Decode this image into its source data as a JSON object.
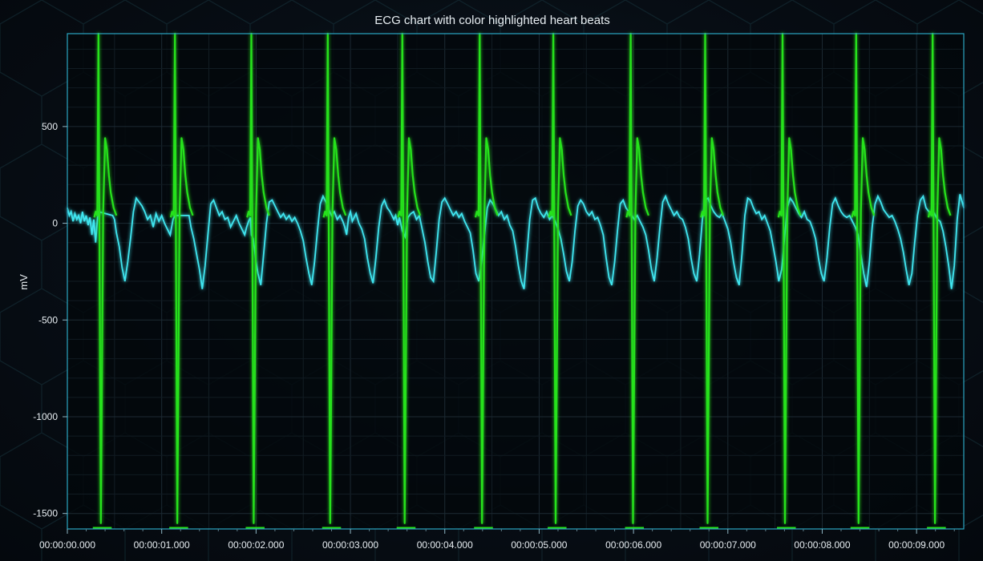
{
  "chart_data": {
    "type": "line",
    "title": "ECG chart with color highlighted heart beats",
    "xlabel": "",
    "ylabel": "mV",
    "x_unit": "seconds",
    "xlim": [
      0,
      9.5
    ],
    "ylim": [
      -1580,
      980
    ],
    "x_ticks": [
      0,
      1,
      2,
      3,
      4,
      5,
      6,
      7,
      8,
      9
    ],
    "x_tick_labels": [
      "00:00:00.000",
      "00:00:01.000",
      "00:00:02.000",
      "00:00:03.000",
      "00:00:04.000",
      "00:00:05.000",
      "00:00:06.000",
      "00:00:07.000",
      "00:00:08.000",
      "00:00:09.000"
    ],
    "y_ticks": [
      500,
      0,
      -500,
      -1000,
      -1500
    ],
    "y_tick_labels": [
      "500",
      "0",
      "-500",
      "-1000",
      "-1500"
    ],
    "grid": true,
    "legend": "none",
    "series": [
      {
        "role": "baseline",
        "color": "#3fe6f0",
        "x": [
          0.0,
          0.02,
          0.04,
          0.06,
          0.08,
          0.1,
          0.12,
          0.14,
          0.16,
          0.18,
          0.2,
          0.22,
          0.24,
          0.26,
          0.28,
          0.3,
          0.32,
          0.33,
          0.48,
          0.5,
          0.52,
          0.55,
          0.58,
          0.61,
          0.64,
          0.67,
          0.7,
          0.73,
          0.76,
          0.79,
          0.82,
          0.85,
          0.88,
          0.91,
          0.94,
          0.97,
          1.0,
          1.03,
          1.06,
          1.09,
          1.12,
          1.14,
          1.29,
          1.31,
          1.34,
          1.37,
          1.4,
          1.43,
          1.46,
          1.49,
          1.52,
          1.55,
          1.58,
          1.61,
          1.64,
          1.67,
          1.7,
          1.73,
          1.76,
          1.79,
          1.82,
          1.85,
          1.88,
          1.9,
          1.92,
          1.94,
          1.95,
          1.97,
          2.0,
          2.02,
          2.05,
          2.08,
          2.11,
          2.14,
          2.17,
          2.2,
          2.23,
          2.26,
          2.29,
          2.32,
          2.35,
          2.38,
          2.41,
          2.44,
          2.47,
          2.5,
          2.53,
          2.56,
          2.59,
          2.62,
          2.65,
          2.68,
          2.71,
          2.74,
          2.77,
          2.8,
          2.83,
          2.86,
          2.89,
          2.92,
          2.94,
          2.96,
          2.98,
          3.0,
          3.02,
          3.06,
          3.09,
          3.12,
          3.15,
          3.18,
          3.21,
          3.24,
          3.27,
          3.3,
          3.33,
          3.36,
          3.39,
          3.42,
          3.44,
          3.46,
          3.48,
          3.5,
          3.52,
          3.55,
          3.58,
          3.61,
          3.64,
          3.67,
          3.7,
          3.73,
          3.76,
          3.79,
          3.82,
          3.85,
          3.88,
          3.91,
          3.94,
          3.97,
          4.0,
          4.03,
          4.06,
          4.09,
          4.12,
          4.15,
          4.18,
          4.21,
          4.24,
          4.27,
          4.3,
          4.33,
          4.36,
          4.39,
          4.42,
          4.45,
          4.48,
          4.51,
          4.54,
          4.57,
          4.6,
          4.63,
          4.66,
          4.69,
          4.72,
          4.75,
          4.78,
          4.81,
          4.84,
          4.87,
          4.9,
          4.93,
          4.96,
          4.99,
          5.02,
          5.05,
          5.08,
          5.11,
          5.14,
          5.17,
          5.2,
          5.23,
          5.26,
          5.29,
          5.32,
          5.35,
          5.38,
          5.41,
          5.44,
          5.47,
          5.5,
          5.53,
          5.56,
          5.59,
          5.62,
          5.65,
          5.68,
          5.71,
          5.74,
          5.77,
          5.8,
          5.83,
          5.86,
          5.89,
          5.92,
          5.95,
          5.98,
          6.01,
          6.04,
          6.07,
          6.1,
          6.13,
          6.16,
          6.19,
          6.22,
          6.25,
          6.28,
          6.31,
          6.34,
          6.37,
          6.4,
          6.43,
          6.46,
          6.49,
          6.52,
          6.55,
          6.58,
          6.61,
          6.64,
          6.67,
          6.7,
          6.73,
          6.76,
          6.79,
          6.82,
          6.85,
          6.88,
          6.91,
          6.94,
          6.97,
          7.0,
          7.03,
          7.06,
          7.09,
          7.12,
          7.15,
          7.18,
          7.21,
          7.24,
          7.27,
          7.3,
          7.33,
          7.36,
          7.39,
          7.42,
          7.45,
          7.48,
          7.51,
          7.54,
          7.57,
          7.6,
          7.63,
          7.66,
          7.69,
          7.72,
          7.75,
          7.78,
          7.81,
          7.84,
          7.87,
          7.9,
          7.93,
          7.96,
          7.99,
          8.02,
          8.05,
          8.08,
          8.11,
          8.14,
          8.17,
          8.2,
          8.23,
          8.26,
          8.29,
          8.32,
          8.35,
          8.38,
          8.41,
          8.44,
          8.47,
          8.5,
          8.53,
          8.56,
          8.59,
          8.62,
          8.65,
          8.68,
          8.71,
          8.74,
          8.77,
          8.8,
          8.83,
          8.86,
          8.89,
          8.92,
          8.95,
          8.98,
          9.01,
          9.04,
          9.07,
          9.1,
          9.13,
          9.16,
          9.19,
          9.22,
          9.25,
          9.28,
          9.31,
          9.34,
          9.37,
          9.4,
          9.43,
          9.46,
          9.49,
          9.5
        ],
        "y": [
          80,
          40,
          60,
          10,
          50,
          20,
          40,
          0,
          60,
          10,
          40,
          -10,
          30,
          -60,
          20,
          -100,
          30,
          60,
          40,
          20,
          -50,
          -120,
          -230,
          -300,
          -200,
          -80,
          60,
          130,
          110,
          90,
          60,
          20,
          40,
          -20,
          50,
          10,
          40,
          0,
          -30,
          -60,
          20,
          40,
          40,
          -20,
          -80,
          -160,
          -240,
          -340,
          -220,
          -60,
          100,
          120,
          80,
          40,
          60,
          20,
          30,
          -20,
          10,
          40,
          0,
          -30,
          -60,
          -20,
          10,
          30,
          -60,
          -80,
          -200,
          -260,
          -320,
          -160,
          0,
          110,
          120,
          90,
          60,
          30,
          50,
          20,
          40,
          10,
          30,
          0,
          -40,
          -90,
          -180,
          -260,
          -320,
          -200,
          -40,
          100,
          140,
          110,
          70,
          40,
          60,
          20,
          40,
          10,
          -20,
          -60,
          30,
          60,
          10,
          50,
          0,
          -30,
          -80,
          -180,
          -260,
          -310,
          -180,
          -20,
          90,
          120,
          80,
          60,
          40,
          20,
          40,
          -10,
          30,
          -40,
          -70,
          30,
          50,
          60,
          20,
          40,
          -30,
          -100,
          -200,
          -280,
          -300,
          -150,
          20,
          110,
          130,
          100,
          70,
          40,
          60,
          30,
          50,
          10,
          -20,
          -50,
          -140,
          -260,
          -300,
          -200,
          -60,
          80,
          120,
          100,
          70,
          40,
          60,
          20,
          40,
          -10,
          -40,
          -120,
          -220,
          -300,
          -340,
          -160,
          20,
          120,
          130,
          80,
          50,
          30,
          60,
          20,
          40,
          10,
          -30,
          -80,
          -160,
          -250,
          -300,
          -200,
          -40,
          90,
          120,
          100,
          60,
          40,
          60,
          20,
          30,
          -10,
          -60,
          -180,
          -280,
          -320,
          -200,
          -40,
          100,
          120,
          80,
          60,
          40,
          20,
          40,
          10,
          -20,
          -60,
          -140,
          -240,
          -300,
          -180,
          -20,
          110,
          140,
          100,
          70,
          40,
          60,
          30,
          20,
          -20,
          -80,
          -180,
          -260,
          -300,
          -160,
          20,
          120,
          130,
          90,
          60,
          40,
          30,
          50,
          10,
          -30,
          -100,
          -200,
          -280,
          -320,
          -160,
          40,
          130,
          120,
          80,
          50,
          60,
          20,
          40,
          0,
          -40,
          -120,
          -200,
          -300,
          -240,
          -80,
          80,
          130,
          110,
          80,
          50,
          30,
          60,
          20,
          10,
          -30,
          -80,
          -180,
          -260,
          -300,
          -180,
          -20,
          100,
          130,
          90,
          60,
          40,
          30,
          40,
          10,
          -20,
          -60,
          -160,
          -260,
          -330,
          -200,
          -20,
          100,
          140,
          110,
          70,
          50,
          30,
          40,
          10,
          -30,
          -80,
          -150,
          -240,
          -320,
          -260,
          -100,
          40,
          120,
          140,
          80,
          60,
          40,
          50,
          20,
          10,
          -40,
          -120,
          -220,
          -340,
          -220,
          20,
          150,
          100,
          80
        ]
      },
      {
        "role": "highlighted-beats",
        "color": "#27e21b",
        "beats_x": [
          0.33,
          1.14,
          1.95,
          2.76,
          3.55,
          4.37,
          5.15,
          5.97,
          6.76,
          7.58,
          8.36,
          9.17
        ],
        "r_peak_mV": 980,
        "s_trough_mV": -1550,
        "t_wave_mV": 440
      }
    ]
  }
}
